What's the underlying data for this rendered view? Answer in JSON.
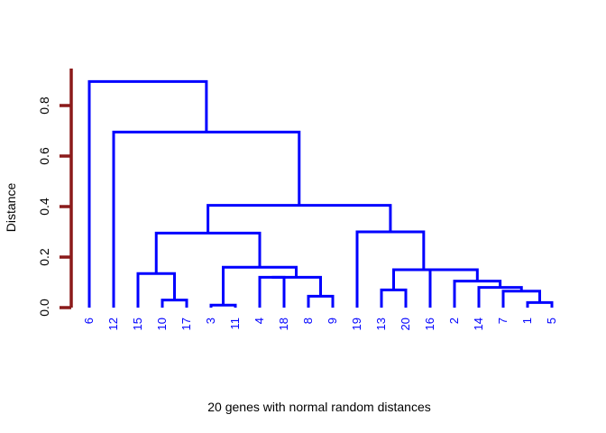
{
  "chart_data": {
    "type": "dendrogram",
    "title": "",
    "xlabel": "20 genes with normal random distances",
    "ylabel": "Distance",
    "ylim": [
      0,
      0.9
    ],
    "y_ticks": [
      0.0,
      0.2,
      0.4,
      0.6,
      0.8
    ],
    "y_tick_labels": [
      "0.0",
      "0.2",
      "0.4",
      "0.6",
      "0.8"
    ],
    "leaf_order": [
      "6",
      "12",
      "15",
      "10",
      "17",
      "3",
      "11",
      "4",
      "18",
      "8",
      "9",
      "19",
      "13",
      "20",
      "16",
      "2",
      "14",
      "7",
      "1",
      "5"
    ],
    "merges": [
      {
        "a": "L:1",
        "b": "L:5",
        "height": 0.02
      },
      {
        "a": "L:7",
        "b": "M:0",
        "height": 0.065
      },
      {
        "a": "L:14",
        "b": "M:1",
        "height": 0.08
      },
      {
        "a": "L:2",
        "b": "M:2",
        "height": 0.105
      },
      {
        "a": "L:16",
        "b": "M:3",
        "height": 0.15
      },
      {
        "a": "L:13",
        "b": "L:20",
        "height": 0.07
      },
      {
        "a": "M:5",
        "b": "M:4",
        "height": 0.15
      },
      {
        "a": "L:19",
        "b": "M:6",
        "height": 0.3
      },
      {
        "a": "L:8",
        "b": "L:9",
        "height": 0.045
      },
      {
        "a": "L:4",
        "b": "L:18",
        "height": 0.12
      },
      {
        "a": "M:9",
        "b": "M:8",
        "height": 0.12
      },
      {
        "a": "L:3",
        "b": "L:11",
        "height": 0.01
      },
      {
        "a": "M:11",
        "b": "M:10",
        "height": 0.16
      },
      {
        "a": "L:10",
        "b": "L:17",
        "height": 0.03
      },
      {
        "a": "L:15",
        "b": "M:13",
        "height": 0.135
      },
      {
        "a": "M:14",
        "b": "M:12",
        "height": 0.295
      },
      {
        "a": "M:15",
        "b": "M:7",
        "height": 0.405
      },
      {
        "a": "L:12",
        "b": "M:16",
        "height": 0.695
      },
      {
        "a": "L:6",
        "b": "M:17",
        "height": 0.895
      }
    ],
    "colors": {
      "branch": "#0000ff",
      "leaf_label": "#0000ff",
      "y_axis": "#8b1a1a",
      "text": "#000000"
    }
  }
}
